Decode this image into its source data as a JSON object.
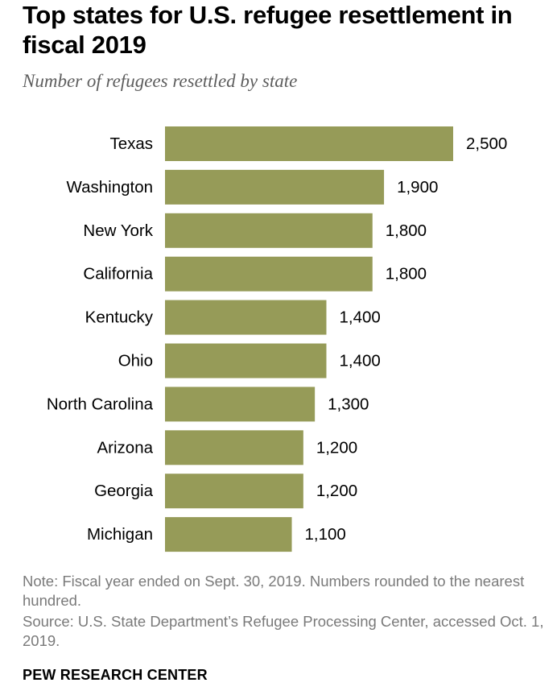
{
  "title": "Top states for U.S. refugee resettlement in fiscal 2019",
  "subtitle": "Number of refugees resettled by state",
  "note": "Note: Fiscal year ended on Sept. 30, 2019. Numbers rounded to the nearest hundred.",
  "source": "Source: U.S. State Department’s Refugee Processing Center, accessed Oct. 1, 2019.",
  "brand": "PEW RESEARCH CENTER",
  "colors": {
    "bar": "#969b58",
    "label": "#000000",
    "note": "#7a7a7a"
  },
  "chart_data": {
    "type": "bar",
    "orientation": "horizontal",
    "categories": [
      "Texas",
      "Washington",
      "New York",
      "California",
      "Kentucky",
      "Ohio",
      "North Carolina",
      "Arizona",
      "Georgia",
      "Michigan"
    ],
    "values": [
      2500,
      1900,
      1800,
      1800,
      1400,
      1400,
      1300,
      1200,
      1200,
      1100
    ],
    "value_labels": [
      "2,500",
      "1,900",
      "1,800",
      "1,800",
      "1,400",
      "1,400",
      "1,300",
      "1,200",
      "1,200",
      "1,100"
    ],
    "title": "Top states for U.S. refugee resettlement in fiscal 2019",
    "xlabel": "",
    "ylabel": "",
    "grid": false
  }
}
